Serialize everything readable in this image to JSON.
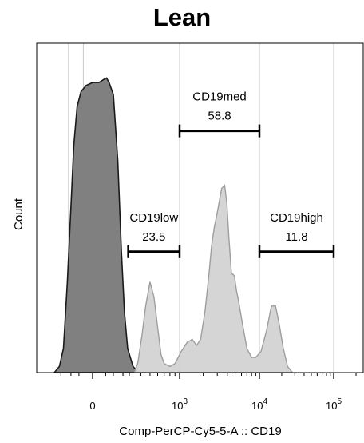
{
  "chart_data": {
    "type": "area",
    "title": "Lean",
    "xlabel": "Comp-PerCP-Cy5-5-A :: CD19",
    "ylabel": "Count",
    "x_scale": "biexponential",
    "x_ticks": [
      {
        "value": 0,
        "base": "0",
        "exp": ""
      },
      {
        "value": 1000,
        "base": "10",
        "exp": "3"
      },
      {
        "value": 10000,
        "base": "10",
        "exp": "4"
      },
      {
        "value": 100000,
        "base": "10",
        "exp": "5"
      }
    ],
    "grid": "vertical-at-gates",
    "series": [
      {
        "role": "control",
        "fill": "#808080",
        "stroke": "#1a1a1a",
        "points": [
          [
            -300,
            0
          ],
          [
            -220,
            2
          ],
          [
            -170,
            8
          ],
          [
            -130,
            30
          ],
          [
            -100,
            55
          ],
          [
            -80,
            75
          ],
          [
            -60,
            88
          ],
          [
            -40,
            93
          ],
          [
            -20,
            95
          ],
          [
            0,
            96
          ],
          [
            20,
            96
          ],
          [
            40,
            97
          ],
          [
            55,
            97.5
          ],
          [
            70,
            96
          ],
          [
            100,
            92
          ],
          [
            140,
            70
          ],
          [
            180,
            40
          ],
          [
            220,
            20
          ],
          [
            270,
            8
          ],
          [
            330,
            2
          ],
          [
            380,
            0
          ]
        ]
      },
      {
        "role": "sample",
        "fill": "#d3d3d3",
        "stroke": "#9e9e9e",
        "points": [
          [
            340,
            0
          ],
          [
            370,
            3
          ],
          [
            410,
            12
          ],
          [
            450,
            22
          ],
          [
            500,
            30
          ],
          [
            550,
            25
          ],
          [
            600,
            15
          ],
          [
            650,
            6
          ],
          [
            700,
            3
          ],
          [
            800,
            2
          ],
          [
            900,
            3
          ],
          [
            1050,
            7
          ],
          [
            1250,
            10
          ],
          [
            1450,
            11
          ],
          [
            1650,
            9
          ],
          [
            1850,
            11
          ],
          [
            2100,
            20
          ],
          [
            2350,
            32
          ],
          [
            2550,
            42
          ],
          [
            2750,
            48
          ],
          [
            2950,
            52
          ],
          [
            3150,
            56
          ],
          [
            3400,
            61
          ],
          [
            3700,
            62
          ],
          [
            3950,
            56
          ],
          [
            4200,
            44
          ],
          [
            4500,
            33
          ],
          [
            4900,
            32
          ],
          [
            5200,
            27
          ],
          [
            5500,
            24
          ],
          [
            6000,
            18
          ],
          [
            7000,
            8
          ],
          [
            8000,
            5
          ],
          [
            9000,
            5
          ],
          [
            10500,
            7
          ],
          [
            12500,
            14
          ],
          [
            14500,
            22
          ],
          [
            16500,
            22
          ],
          [
            18500,
            16
          ],
          [
            21000,
            8
          ],
          [
            24000,
            2
          ],
          [
            28000,
            0
          ]
        ]
      }
    ],
    "gates": [
      {
        "name": "CD19low",
        "value": "23.5",
        "x_start": 280,
        "x_end": 1000,
        "y": 40
      },
      {
        "name": "CD19med",
        "value": "58.8",
        "x_start": 1000,
        "x_end": 10000,
        "y": 80
      },
      {
        "name": "CD19high",
        "value": "11.8",
        "x_start": 10000,
        "x_end": 100000,
        "y": 40
      }
    ]
  }
}
